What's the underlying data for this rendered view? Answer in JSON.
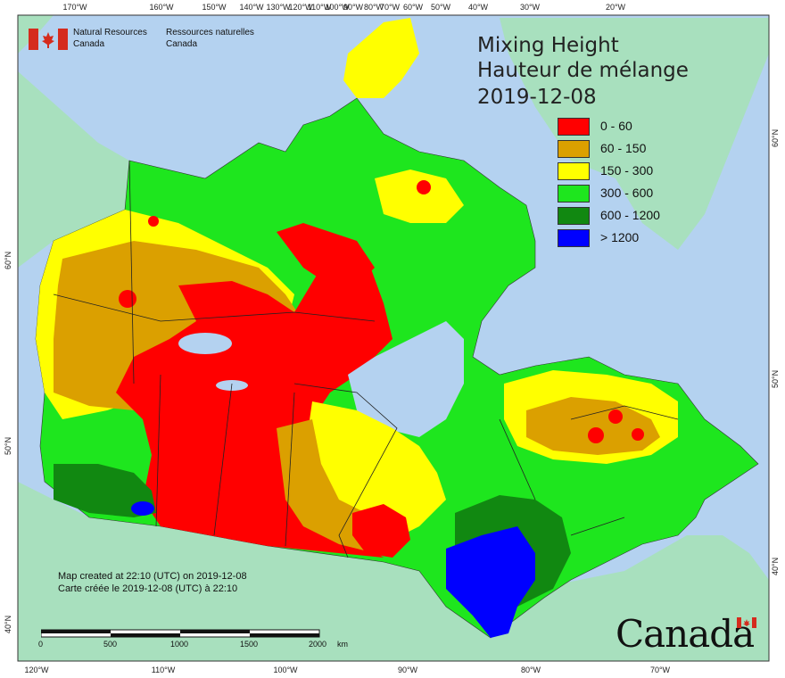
{
  "map": {
    "title_en": "Mixing Height",
    "title_fr": "Hauteur de mélange",
    "date": "2019-12-08",
    "colors": {
      "ocean": "#b4d2f0",
      "land_outside": "#a8e0be",
      "boundary": "#333333"
    }
  },
  "legend": {
    "items": [
      {
        "label": "0 - 60",
        "color": "#ff0000"
      },
      {
        "label": "60 - 150",
        "color": "#dba000"
      },
      {
        "label": "150 - 300",
        "color": "#ffff00"
      },
      {
        "label": "300 - 600",
        "color": "#1ee61e"
      },
      {
        "label": "600 - 1200",
        "color": "#118811"
      },
      {
        "label": "> 1200",
        "color": "#0000ff"
      }
    ]
  },
  "agency": {
    "name_en_1": "Natural Resources",
    "name_en_2": "Canada",
    "name_fr_1": "Ressources naturelles",
    "name_fr_2": "Canada",
    "flag_icon": "canada-flag-icon"
  },
  "credits": {
    "line_en": "Map created at 22:10 (UTC) on 2019-12-08",
    "line_fr": "Carte créée le 2019-12-08 (UTC) à 22:10"
  },
  "scale": {
    "ticks": [
      "0",
      "500",
      "1000",
      "1500",
      "2000"
    ],
    "unit": "km"
  },
  "graticule": {
    "top": [
      "170°W",
      "160°W",
      "150°W",
      "140°W",
      "130°W",
      "120°W",
      "110°W",
      "100°W",
      "90°W",
      "80°W",
      "70°W",
      "60°W",
      "50°W",
      "40°W",
      "30°W",
      "20°W"
    ],
    "bottom": [
      "120°W",
      "110°W",
      "100°W",
      "90°W",
      "80°W",
      "70°W"
    ],
    "left": [
      "60°N",
      "50°N",
      "40°N"
    ],
    "right": [
      "60°N",
      "50°N",
      "40°N"
    ]
  },
  "wordmark": "Canada"
}
